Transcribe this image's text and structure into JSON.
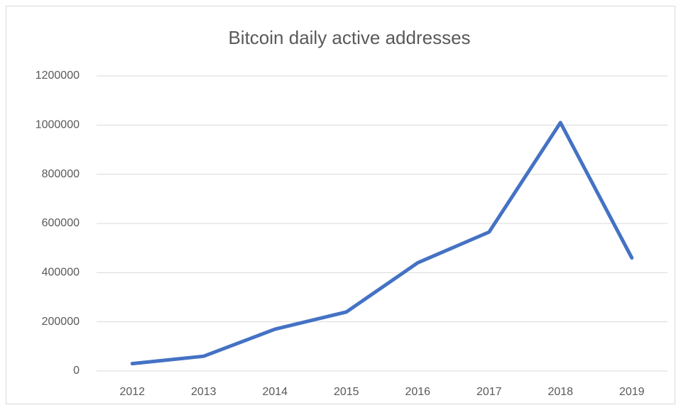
{
  "chart_data": {
    "type": "line",
    "title": "Bitcoin daily active addresses",
    "categories": [
      "2012",
      "2013",
      "2014",
      "2015",
      "2016",
      "2017",
      "2018",
      "2019"
    ],
    "values": [
      30000,
      60000,
      170000,
      240000,
      440000,
      565000,
      1010000,
      460000
    ],
    "color": "#4472c4",
    "ylim": [
      0,
      1200000
    ],
    "yticks": [
      0,
      200000,
      400000,
      600000,
      800000,
      1000000,
      1200000
    ],
    "grid": true
  }
}
